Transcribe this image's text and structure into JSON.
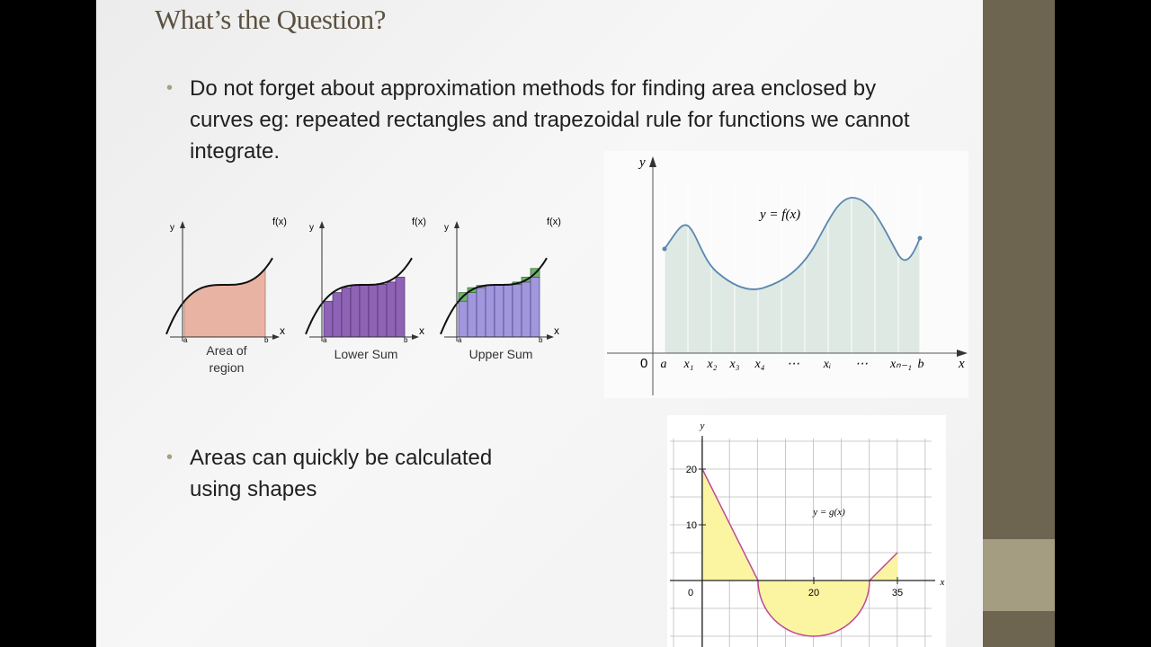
{
  "title": "What’s the Question?",
  "bullets": [
    "Do not forget about approximation methods for finding area enclosed by curves eg: repeated rectangles and trapezoidal rule for functions we cannot integrate.",
    "Areas can quickly be calculated using shapes"
  ],
  "sum_figures": [
    {
      "y_label": "y",
      "f_label": "f(x)",
      "x_label": "x",
      "a_label": "a",
      "b_label": "b",
      "caption": [
        "Area of",
        "region"
      ]
    },
    {
      "y_label": "y",
      "f_label": "f(x)",
      "x_label": "x",
      "a_label": "a",
      "b_label": "b",
      "caption": [
        "Lower Sum"
      ]
    },
    {
      "y_label": "y",
      "f_label": "f(x)",
      "x_label": "x",
      "a_label": "a",
      "b_label": "b",
      "caption": [
        "Upper Sum"
      ]
    }
  ],
  "riemann_figure": {
    "y_label": "y",
    "curve_label": "y = f(x)",
    "origin": "0",
    "x_labels": [
      "a",
      "x₁",
      "x₂",
      "x₃",
      "x₄",
      "⋯",
      "xᵢ",
      "⋯",
      "xₙ₋₁",
      "b"
    ],
    "x_axis_label": "x"
  },
  "g_graph": {
    "y_label": "y",
    "yticks": [
      20,
      10
    ],
    "origin": 0,
    "xticks": [
      20,
      35
    ],
    "x_label": "x",
    "curve_label": "y = g(x)"
  }
}
